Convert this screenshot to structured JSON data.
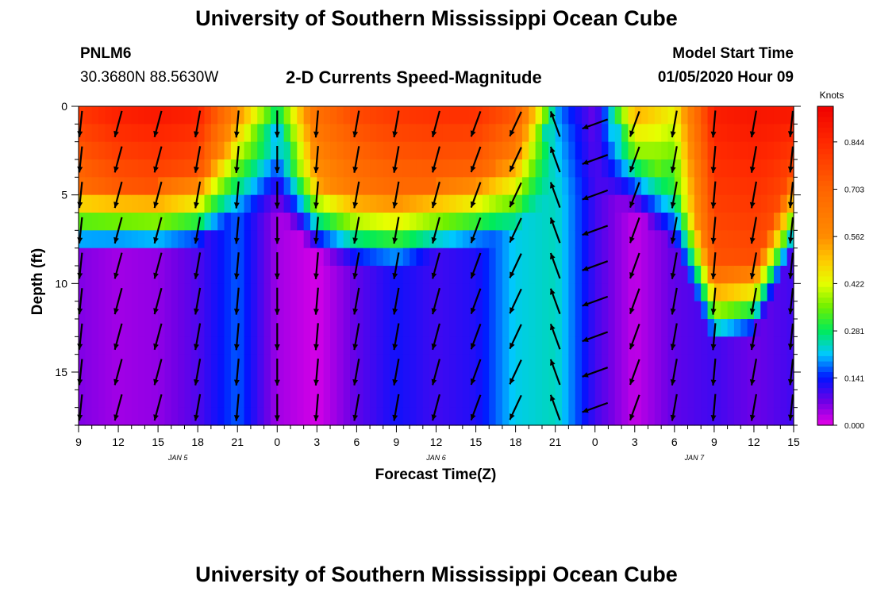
{
  "header": {
    "top_title": "University of Southern Mississippi Ocean Cube",
    "station_id": "PNLM6",
    "station_coords": "30.3680N 88.5630W",
    "chart_title": "2-D Currents Speed-Magnitude",
    "model_label": "Model Start Time",
    "model_time": "01/05/2020 Hour 09",
    "bottom_title": "University of Southern Mississippi Ocean Cube"
  },
  "chart_data": {
    "type": "heatmap",
    "title": "2-D Currents Speed-Magnitude",
    "xlabel": "Forecast Time(Z)",
    "ylabel": "Depth (ft)",
    "x_tick_labels": [
      "9",
      "12",
      "15",
      "18",
      "21",
      "0",
      "3",
      "6",
      "9",
      "12",
      "15",
      "18",
      "21",
      "0",
      "3",
      "6",
      "9",
      "12",
      "15"
    ],
    "x_hours_from_start": [
      0,
      3,
      6,
      9,
      12,
      15,
      18,
      21,
      24,
      27,
      30,
      33,
      36,
      39,
      42,
      45,
      48,
      51,
      54
    ],
    "day_labels": [
      {
        "text": "JAN 5",
        "hour": 7.5
      },
      {
        "text": "JAN 6",
        "hour": 27
      },
      {
        "text": "JAN 7",
        "hour": 46.5
      }
    ],
    "y_ticks": [
      0,
      5,
      10,
      15
    ],
    "ylim": [
      0,
      18
    ],
    "depths_ft": [
      0.5,
      1.5,
      2.5,
      3.5,
      4.5,
      5.5,
      6.5,
      7.5,
      8.5,
      9.5,
      10.5,
      11.5,
      12.5,
      13.5,
      14.5,
      15.5,
      16.5,
      17.5
    ],
    "colorbar": {
      "unit": "Knots",
      "tick_labels": [
        "0.000",
        "0.141",
        "0.281",
        "0.422",
        "0.562",
        "0.703",
        "0.844"
      ],
      "ticks": [
        0.0,
        0.141,
        0.281,
        0.422,
        0.562,
        0.703,
        0.844
      ],
      "range": [
        0,
        0.95
      ]
    },
    "surface_speed_knots": [
      0.82,
      0.88,
      0.9,
      0.88,
      0.6,
      0.3,
      0.68,
      0.78,
      0.82,
      0.84,
      0.84,
      0.75,
      0.28,
      0.1,
      0.55,
      0.45,
      0.88,
      0.9,
      0.9
    ],
    "mixed_layer_depth_ft": [
      4.5,
      4.5,
      4.5,
      4.0,
      2.0,
      2.0,
      4.5,
      5.0,
      5.0,
      4.5,
      4.0,
      3.0,
      1.0,
      1.0,
      2.0,
      4.0,
      9.5,
      9.0,
      4.0
    ],
    "bottom_speed_knots": [
      0.06,
      0.04,
      0.05,
      0.09,
      0.17,
      0.04,
      0.01,
      0.08,
      0.13,
      0.1,
      0.12,
      0.22,
      0.24,
      0.1,
      0.02,
      0.08,
      0.1,
      0.07,
      0.1
    ],
    "arrow_depths_ft": [
      1.0,
      3.0,
      5.0,
      7.0,
      9.0,
      11.0,
      13.0,
      15.0,
      17.0
    ],
    "arrow_hours": [
      0,
      3,
      6,
      9,
      12,
      15,
      18,
      21,
      24,
      27,
      30,
      33,
      36,
      39,
      42,
      45,
      48,
      51,
      54
    ],
    "arrow_direction_deg": [
      195,
      195,
      195,
      190,
      185,
      180,
      185,
      190,
      190,
      195,
      200,
      205,
      340,
      250,
      200,
      190,
      185,
      190,
      195
    ]
  }
}
